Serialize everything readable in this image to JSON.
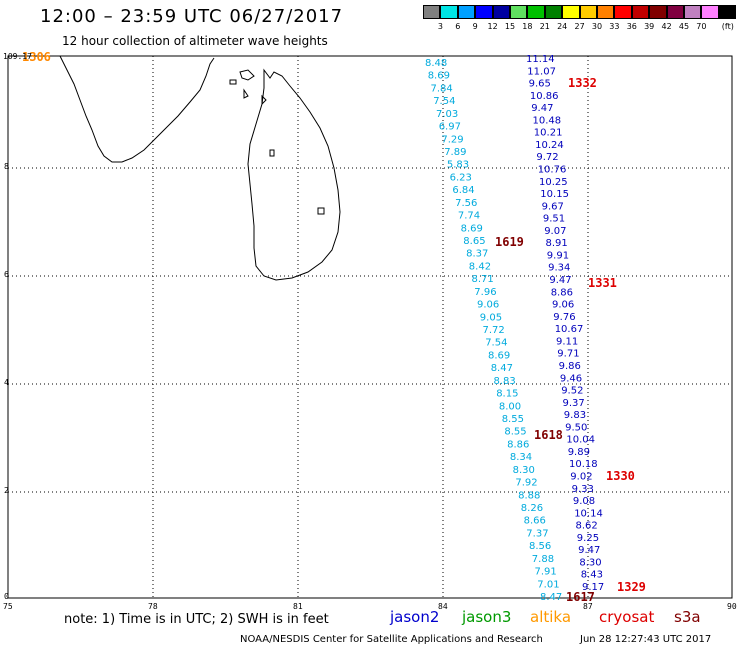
{
  "header": {
    "title": "12:00 – 23:59 UTC 06/27/2017",
    "subtitle": "12 hour collection of altimeter wave heights"
  },
  "colorbar": {
    "unit": "(ft)",
    "colors": [
      "#808080",
      "#00e5e5",
      "#00a0ff",
      "#0000ff",
      "#0000a0",
      "#60e060",
      "#00c000",
      "#008000",
      "#ffff00",
      "#ffcc00",
      "#ff8000",
      "#ff0000",
      "#c00000",
      "#800000",
      "#800040",
      "#c080c0",
      "#ff80ff",
      "#000000"
    ],
    "labels": [
      "3",
      "6",
      "9",
      "12",
      "15",
      "18",
      "21",
      "24",
      "27",
      "30",
      "33",
      "36",
      "39",
      "42",
      "45",
      "70"
    ]
  },
  "axes": {
    "y_top_label": "109.17",
    "y_labels": [
      "8",
      "6",
      "4",
      "2",
      "0"
    ],
    "x_labels": [
      "75",
      "78",
      "81",
      "84",
      "87",
      "90"
    ]
  },
  "pass_labels": [
    {
      "text": "1306",
      "color": "#ff8800"
    },
    {
      "text": "1332",
      "color": "#dd0000"
    },
    {
      "text": "1619",
      "color": "#800000"
    },
    {
      "text": "1331",
      "color": "#dd0000"
    },
    {
      "text": "1618",
      "color": "#800000"
    },
    {
      "text": "1330",
      "color": "#dd0000"
    },
    {
      "text": "1329",
      "color": "#dd0000"
    },
    {
      "text": "1617",
      "color": "#800000"
    }
  ],
  "track_lightblue": [
    "8.48",
    "8.69",
    "7.84",
    "7.54",
    "7.03",
    "6.97",
    "7.29",
    "7.89",
    "5.83",
    "6.23",
    "6.84",
    "7.56",
    "7.74",
    "8.69",
    "8.65",
    "8.37",
    "8.42",
    "8.71",
    "7.96",
    "9.06",
    "9.05",
    "7.72",
    "7.54",
    "8.69",
    "8.47",
    "8.83",
    "8.15",
    "8.00",
    "8.55",
    "8.55",
    "8.86",
    "8.34",
    "8.30",
    "7.92",
    "8.88",
    "8.26",
    "8.66",
    "7.37",
    "8.56",
    "7.88",
    "7.91",
    "7.01",
    "8.47"
  ],
  "track_darkblue": [
    "11.14",
    "11.07",
    "9.65",
    "10.86",
    "9.47",
    "10.48",
    "10.21",
    "10.24",
    "9.72",
    "10.76",
    "10.25",
    "10.15",
    "9.67",
    "9.51",
    "9.07",
    "8.91",
    "9.91",
    "9.34",
    "9.47",
    "8.86",
    "9.06",
    "9.76",
    "10.67",
    "9.11",
    "9.71",
    "9.86",
    "9.46",
    "9.52",
    "9.37",
    "9.83",
    "9.50",
    "10.04",
    "9.89",
    "10.18",
    "9.02",
    "9.33",
    "9.08",
    "10.14",
    "8.62",
    "9.25",
    "9.47",
    "8.30",
    "8.43",
    "9.17"
  ],
  "note": "note: 1) Time is in UTC; 2) SWH is in feet",
  "legend": [
    {
      "text": "jason2",
      "color": "#0000cc"
    },
    {
      "text": "jason3",
      "color": "#009900"
    },
    {
      "text": "altika",
      "color": "#ff9900"
    },
    {
      "text": "cryosat",
      "color": "#dd0000"
    },
    {
      "text": "s3a",
      "color": "#800000"
    }
  ],
  "footer": {
    "org": "NOAA/NESDIS Center for Satellite Applications and Research",
    "timestamp": "Jun 28 12:27:43 UTC 2017"
  }
}
